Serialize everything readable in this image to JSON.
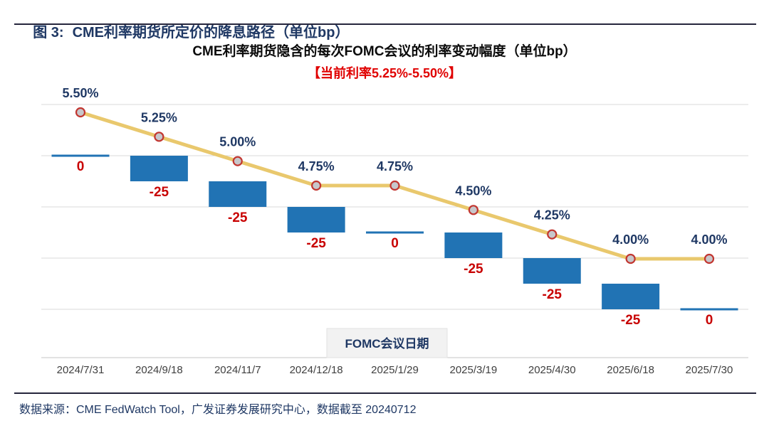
{
  "header": {
    "figure_label": "图 3:",
    "title": "CME利率期货所定价的降息路径（单位bp）"
  },
  "chart": {
    "title": "CME利率期货隐含的每次FOMC会议的利率变动幅度（单位bp）",
    "subtitle": "【当前利率5.25%-5.50%】"
  },
  "chart_data": {
    "type": "waterfall_bar_with_line",
    "categories": [
      "2024/7/31",
      "2024/9/18",
      "2024/11/7",
      "2024/12/18",
      "2025/1/29",
      "2025/3/19",
      "2025/4/30",
      "2025/6/18",
      "2025/7/30"
    ],
    "x_axis_box_label": "FOMC会议日期",
    "series": [
      {
        "name": "rate-change-per-meeting-bp",
        "type": "waterfall-bar",
        "unit": "bp",
        "values": [
          0,
          -25,
          -25,
          -25,
          0,
          -25,
          -25,
          -25,
          0
        ],
        "labels": [
          "0",
          "-25",
          "-25",
          "-25",
          "0",
          "-25",
          "-25",
          "-25",
          "0"
        ]
      },
      {
        "name": "implied-policy-rate-percent",
        "type": "line",
        "unit": "%",
        "values": [
          5.5,
          5.25,
          5.0,
          4.75,
          4.75,
          4.5,
          4.25,
          4.0,
          4.0
        ],
        "labels": [
          "5.50%",
          "5.25%",
          "5.00%",
          "4.75%",
          "4.75%",
          "4.50%",
          "4.25%",
          "4.00%",
          "4.00%"
        ]
      }
    ],
    "bar_axis": {
      "unit": "bp",
      "grid": true,
      "gridline_values_bp": [
        50,
        0,
        -50,
        -100,
        -150
      ],
      "labels_visible": false
    },
    "line_axis": {
      "unit": "%",
      "labels_visible": false
    },
    "legend": "none"
  },
  "footer": {
    "source": "数据来源：CME FedWatch Tool，广发证券发展研究中心，数据截至 20240712"
  },
  "colors": {
    "navy": "#1F3864",
    "bar_blue": "#2173B4",
    "line_gold": "#E9C86D",
    "marker_fill": "#C7C7CB",
    "marker_ring": "#C23630",
    "label_red": "#C80000",
    "subtitle_red": "#E00000",
    "gridline": "#D9D9D9",
    "axis_line": "#C6C6C6",
    "tick_text": "#3F3F3F",
    "box_fill": "#F2F2F2",
    "box_border": "#E2E2E2",
    "rule_dark": "#26263C"
  }
}
